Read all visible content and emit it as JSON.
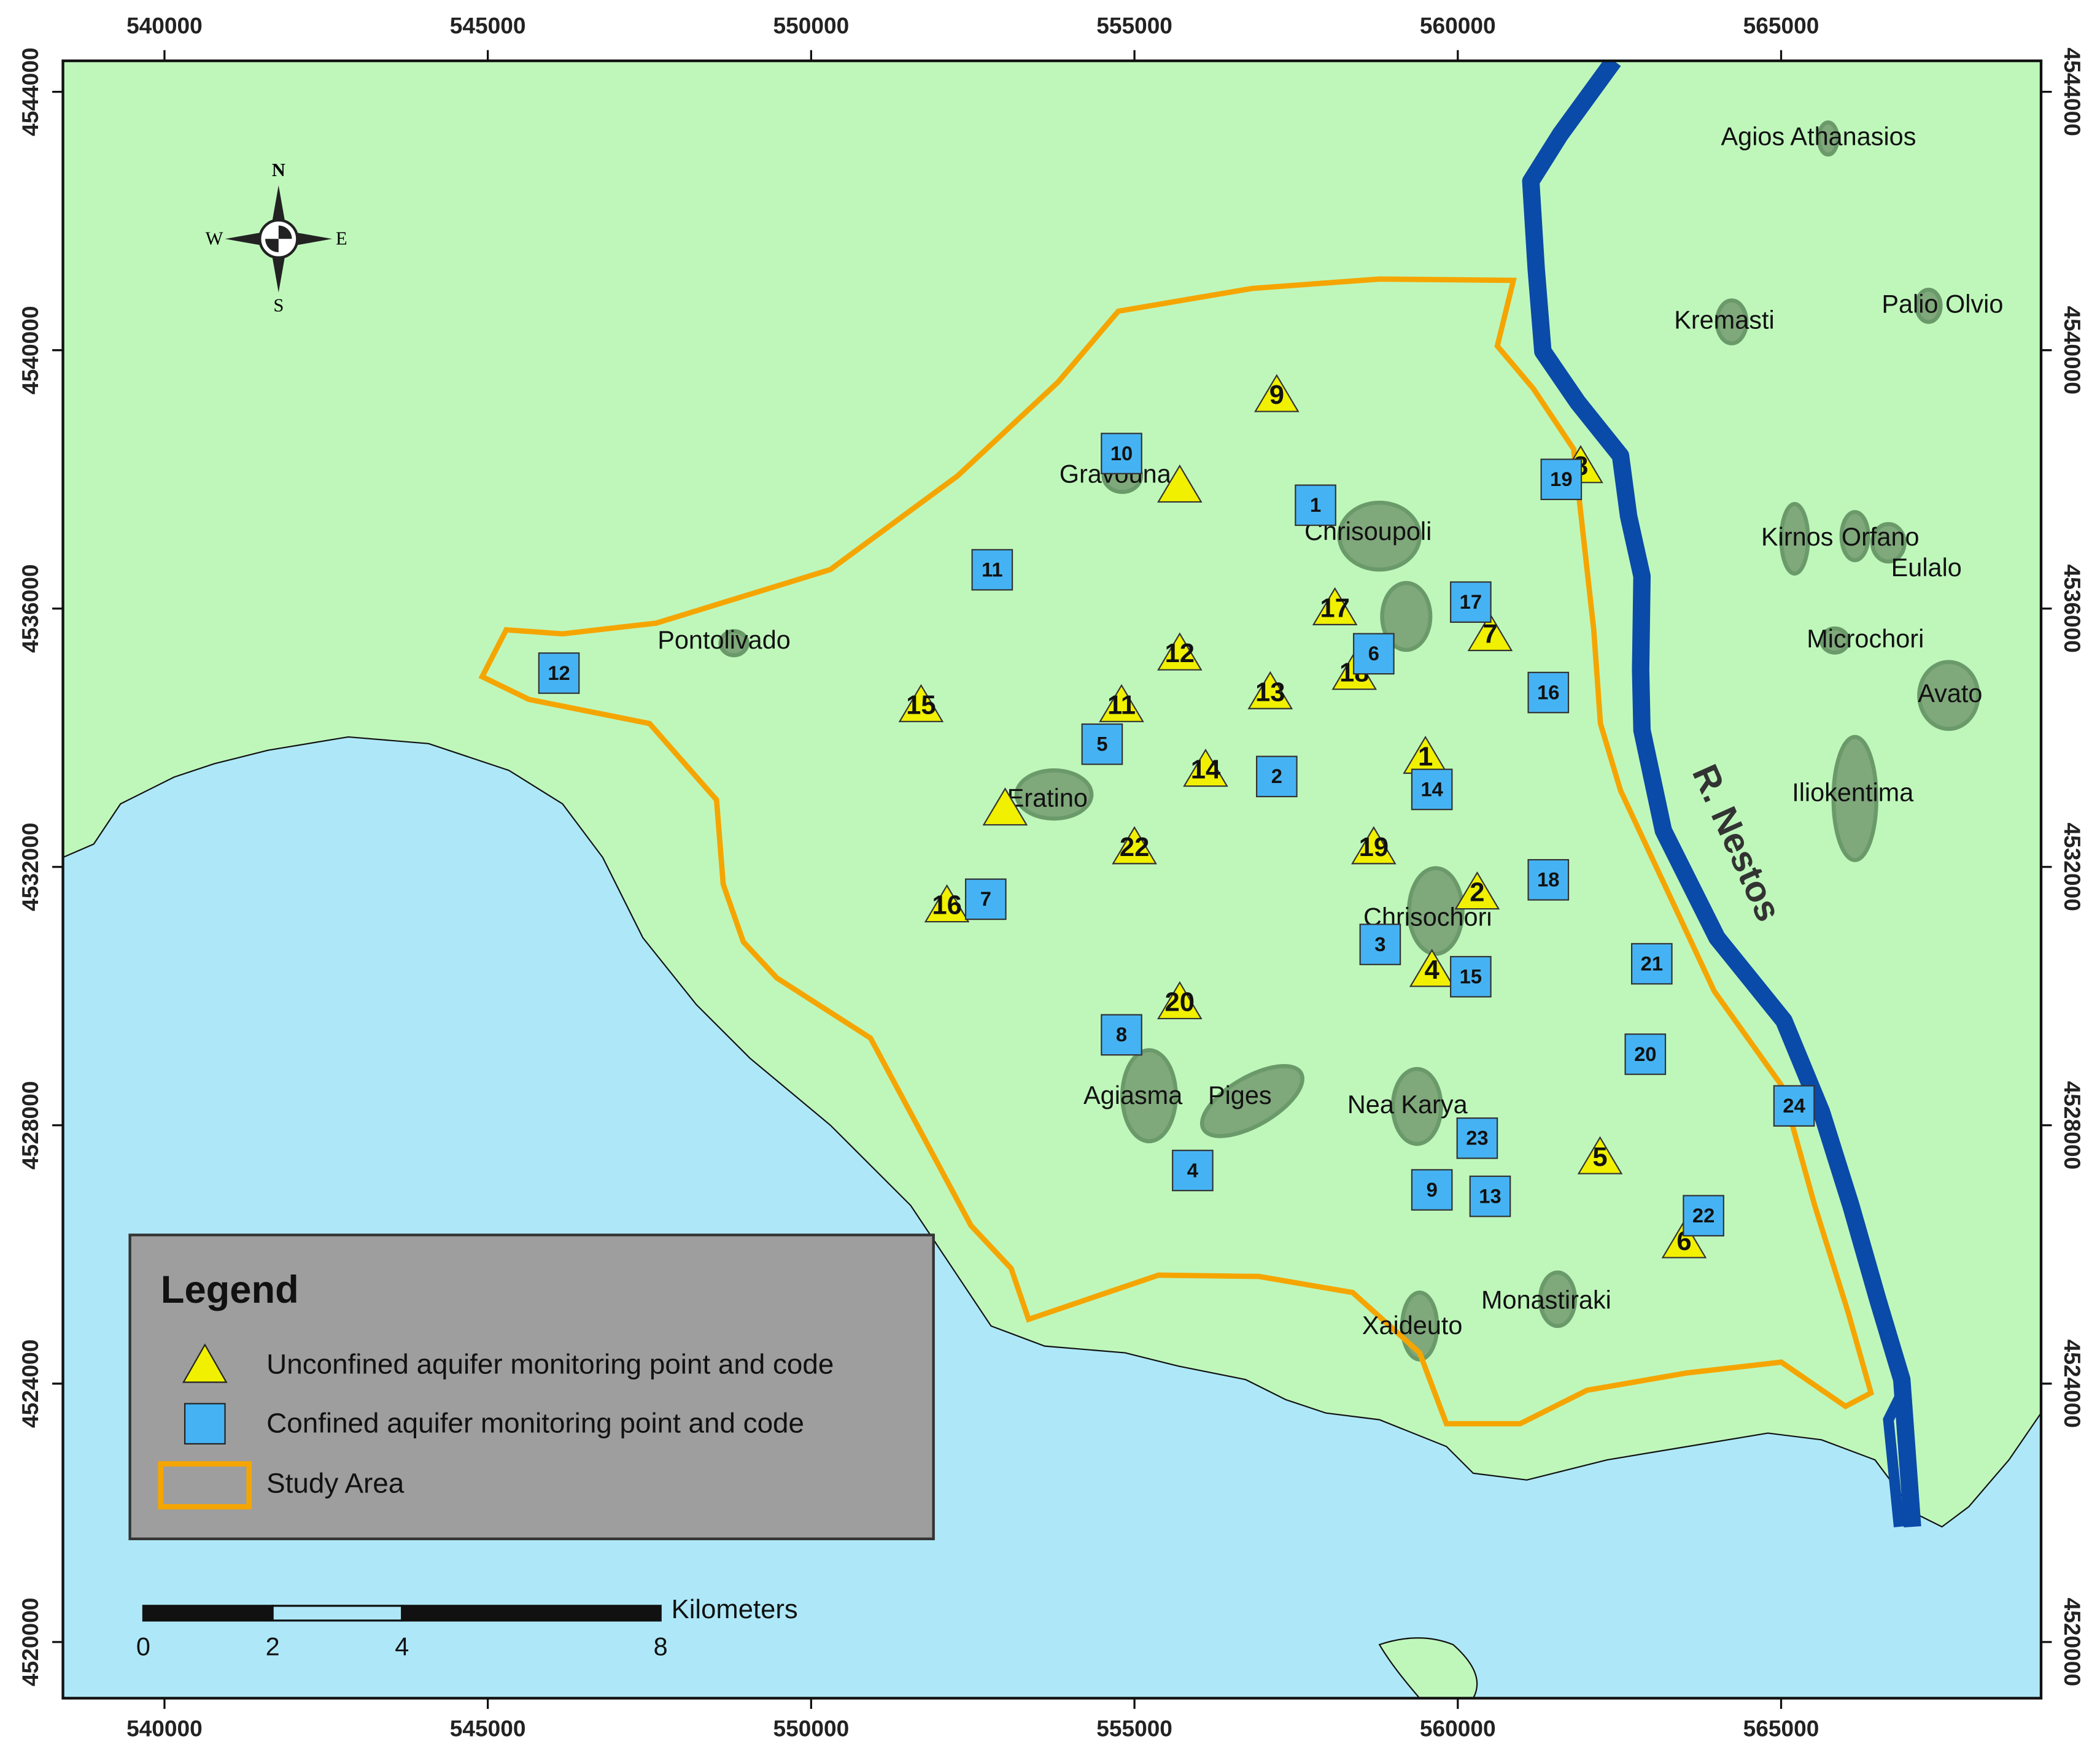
{
  "chart_data": {
    "type": "map",
    "xlim": [
      538430,
      569020
    ],
    "ylim": [
      4519130,
      4544480
    ],
    "xticks": [
      540000,
      545000,
      550000,
      555000,
      560000,
      565000
    ],
    "yticks": [
      4520000,
      4524000,
      4528000,
      4532000,
      4536000,
      4540000,
      4544000
    ],
    "compass": [
      "N",
      "E",
      "S",
      "W"
    ],
    "river_label": "R. Nestos",
    "places": [
      "Agios Athanasios",
      "Kremasti",
      "Palio Olvio",
      "Gravouna",
      "Chrisoupoli",
      "Kirnos",
      "Orfano",
      "Eulalo",
      "Pontolivado",
      "Microchori",
      "Avato",
      "Iliokentima",
      "Eratino",
      "Chrisochori",
      "Agiasma",
      "Piges",
      "Nea Karya",
      "Monastiraki",
      "Xaideuto"
    ],
    "series": [
      {
        "name": "Unconfined aquifer monitoring point and code",
        "marker": "triangle",
        "color": "#f0f000",
        "points": [
          {
            "code": 9,
            "x": 557200,
            "y": 4539300
          },
          {
            "code": null,
            "x": 555700,
            "y": 4537900
          },
          {
            "code": 8,
            "x": 561900,
            "y": 4538200
          },
          {
            "code": 17,
            "x": 558100,
            "y": 4536000
          },
          {
            "code": 7,
            "x": 560500,
            "y": 4535600
          },
          {
            "code": 12,
            "x": 555700,
            "y": 4535300
          },
          {
            "code": 18,
            "x": 558400,
            "y": 4535000
          },
          {
            "code": 13,
            "x": 557100,
            "y": 4534700
          },
          {
            "code": 11,
            "x": 554800,
            "y": 4534500
          },
          {
            "code": 15,
            "x": 551700,
            "y": 4534500
          },
          {
            "code": 1,
            "x": 559500,
            "y": 4533700
          },
          {
            "code": 14,
            "x": 556100,
            "y": 4533500
          },
          {
            "code": null,
            "x": 553000,
            "y": 4532900
          },
          {
            "code": 22,
            "x": 555000,
            "y": 4532300
          },
          {
            "code": 19,
            "x": 558700,
            "y": 4532300
          },
          {
            "code": 2,
            "x": 560300,
            "y": 4531600
          },
          {
            "code": 16,
            "x": 552100,
            "y": 4531400
          },
          {
            "code": 4,
            "x": 559600,
            "y": 4530400
          },
          {
            "code": 20,
            "x": 555700,
            "y": 4529900
          },
          {
            "code": 5,
            "x": 562200,
            "y": 4527500
          },
          {
            "code": 6,
            "x": 563500,
            "y": 4526200
          }
        ]
      },
      {
        "name": "Confined aquifer monitoring point and code",
        "marker": "square",
        "color": "#45b3f3",
        "points": [
          {
            "code": 10,
            "x": 554800,
            "y": 4538400
          },
          {
            "code": 19,
            "x": 561600,
            "y": 4538000
          },
          {
            "code": 1,
            "x": 557800,
            "y": 4537600
          },
          {
            "code": 11,
            "x": 552800,
            "y": 4536600
          },
          {
            "code": 17,
            "x": 560200,
            "y": 4536100
          },
          {
            "code": 6,
            "x": 558700,
            "y": 4535300
          },
          {
            "code": 12,
            "x": 546100,
            "y": 4535000
          },
          {
            "code": 16,
            "x": 561400,
            "y": 4534700
          },
          {
            "code": 5,
            "x": 554500,
            "y": 4533900
          },
          {
            "code": 2,
            "x": 557200,
            "y": 4533400
          },
          {
            "code": 14,
            "x": 559600,
            "y": 4533200
          },
          {
            "code": 7,
            "x": 552700,
            "y": 4531500
          },
          {
            "code": 18,
            "x": 561400,
            "y": 4531800
          },
          {
            "code": 3,
            "x": 558800,
            "y": 4530800
          },
          {
            "code": 21,
            "x": 563000,
            "y": 4530500
          },
          {
            "code": 15,
            "x": 560200,
            "y": 4530300
          },
          {
            "code": 8,
            "x": 554800,
            "y": 4529400
          },
          {
            "code": 20,
            "x": 562900,
            "y": 4529100
          },
          {
            "code": 24,
            "x": 565200,
            "y": 4528300
          },
          {
            "code": 23,
            "x": 560300,
            "y": 4527800
          },
          {
            "code": 4,
            "x": 555900,
            "y": 4527300
          },
          {
            "code": 9,
            "x": 559600,
            "y": 4527000
          },
          {
            "code": 13,
            "x": 560500,
            "y": 4526900
          },
          {
            "code": 22,
            "x": 563800,
            "y": 4526600
          }
        ]
      }
    ],
    "study_area": {
      "name": "Study Area",
      "color": "#f5a500"
    },
    "legend": {
      "title": "Legend"
    },
    "scale_bar": {
      "unit": "Kilometers",
      "ticks": [
        0,
        2,
        4,
        8
      ]
    }
  }
}
